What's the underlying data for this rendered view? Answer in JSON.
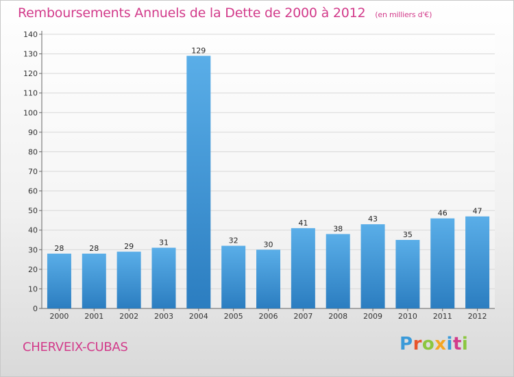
{
  "title": "Remboursements Annuels de la Dette de 2000 à 2012",
  "subtitle": "(en milliers d'€)",
  "commune": "CHERVEIX-CUBAS",
  "logo": {
    "letters": [
      "P",
      "r",
      "o",
      "x",
      "i",
      "t",
      "i"
    ],
    "colors": [
      "#3a9ad9",
      "#e8542b",
      "#8cc63f",
      "#f5a623",
      "#3a9ad9",
      "#d23a8a",
      "#8cc63f"
    ]
  },
  "colors": {
    "title": "#d23a8a",
    "bar_top": "#5aaee8",
    "bar_bottom": "#2b7dc0",
    "grid": "#d7d7d7"
  },
  "chart_data": {
    "type": "bar",
    "title": "Remboursements Annuels de la Dette de 2000 à 2012",
    "xlabel": "",
    "ylabel": "",
    "categories": [
      "2000",
      "2001",
      "2002",
      "2003",
      "2004",
      "2005",
      "2006",
      "2007",
      "2008",
      "2009",
      "2010",
      "2011",
      "2012"
    ],
    "values": [
      28,
      28,
      29,
      31,
      129,
      32,
      30,
      41,
      38,
      43,
      35,
      46,
      47
    ],
    "ylim": [
      0,
      140
    ],
    "yticks": [
      0,
      10,
      20,
      30,
      40,
      50,
      60,
      70,
      80,
      90,
      100,
      110,
      120,
      130,
      140
    ],
    "grid": true,
    "legend": "none"
  }
}
